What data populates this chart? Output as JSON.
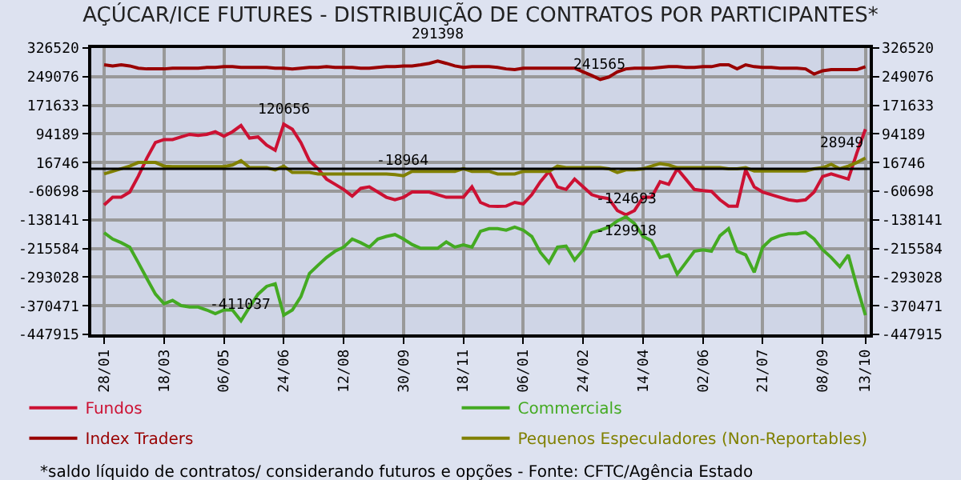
{
  "chart_data": {
    "type": "line",
    "title": "AÇÚCAR/ICE FUTURES - DISTRIBUIÇÃO DE CONTRATOS POR PARTICIPANTES*",
    "annotations": [
      "*saldo líquido de contratos/ considerando futuros e opções - Fonte: CFTC/Agência Estado"
    ],
    "categories": [
      "28/01",
      null,
      null,
      null,
      null,
      null,
      null,
      "18/03",
      null,
      null,
      null,
      null,
      null,
      null,
      "06/05",
      null,
      null,
      null,
      null,
      null,
      null,
      "24/06",
      null,
      null,
      null,
      null,
      null,
      null,
      "12/08",
      null,
      null,
      null,
      null,
      null,
      null,
      "30/09",
      null,
      null,
      null,
      null,
      null,
      null,
      "18/11",
      null,
      null,
      null,
      null,
      null,
      null,
      "06/01",
      null,
      null,
      null,
      null,
      null,
      null,
      "24/02",
      null,
      null,
      null,
      null,
      null,
      null,
      "14/04",
      null,
      null,
      null,
      null,
      null,
      null,
      "02/06",
      null,
      null,
      null,
      null,
      null,
      null,
      "21/07",
      null,
      null,
      null,
      null,
      null,
      null,
      "08/09",
      null,
      null,
      null,
      null,
      "13/10"
    ],
    "series": [
      {
        "name": "Fundos",
        "color": "#cc1133",
        "values": [
          -98000,
          -77000,
          -77000,
          -63000,
          -20000,
          29000,
          71000,
          79000,
          79000,
          86000,
          93000,
          90000,
          93000,
          100000,
          88000,
          100000,
          117000,
          83000,
          86000,
          64000,
          50000,
          120656,
          107000,
          71000,
          22000,
          0,
          -28000,
          -42000,
          -56000,
          -74000,
          -53000,
          -49000,
          -63000,
          -77000,
          -84000,
          -77000,
          -63000,
          -63000,
          -63000,
          -70000,
          -77000,
          -77000,
          -77000,
          -49000,
          -91000,
          -101000,
          -102000,
          -101000,
          -91000,
          -95000,
          -70000,
          -35000,
          -7000,
          -49000,
          -56000,
          -28000,
          -49000,
          -70000,
          -77000,
          -81000,
          -113000,
          -124693,
          -113000,
          -77000,
          -77000,
          -35000,
          -42000,
          0,
          -28000,
          -56000,
          -59000,
          -61000,
          -84000,
          -101000,
          -101000,
          -3000,
          -49000,
          -63000,
          -70000,
          -77000,
          -84000,
          -87000,
          -84000,
          -63000,
          -21000,
          -14000,
          -21000,
          -28000,
          43000,
          107000
        ],
        "value_labels": [
          null,
          null,
          null,
          null,
          null,
          null,
          null,
          null,
          null,
          null,
          null,
          null,
          null,
          null,
          null,
          null,
          null,
          null,
          null,
          null,
          null,
          "120656",
          null,
          null,
          null,
          null,
          null,
          null,
          null,
          null,
          null,
          null,
          null,
          null,
          null,
          null,
          null,
          null,
          null,
          null,
          null,
          null,
          null,
          null,
          null,
          null,
          null,
          null,
          null,
          null,
          null,
          null,
          null,
          null,
          null,
          null,
          null,
          null,
          null,
          null,
          null,
          "-124693",
          null,
          null,
          null,
          null,
          null,
          null,
          null,
          null,
          null,
          null,
          null,
          null,
          null,
          null,
          null,
          null,
          null,
          null,
          null,
          null,
          null,
          null,
          null,
          null,
          null,
          null,
          null,
          null
        ]
      },
      {
        "name": "Commercials",
        "color": "#44aa22",
        "values": [
          -173000,
          -190000,
          -200000,
          -212000,
          -254000,
          -297000,
          -339000,
          -365000,
          -356000,
          -370000,
          -374000,
          -374000,
          -382000,
          -392000,
          -382000,
          -382000,
          -411037,
          -374000,
          -339000,
          -318000,
          -311000,
          -396000,
          -382000,
          -346000,
          -283000,
          -261000,
          -240000,
          -223000,
          -212000,
          -190000,
          -200000,
          -212000,
          -190000,
          -183000,
          -178000,
          -190000,
          -205000,
          -215000,
          -215000,
          -215000,
          -198000,
          -212000,
          -206000,
          -212000,
          -169000,
          -162000,
          -162000,
          -166000,
          -158000,
          -166000,
          -183000,
          -226000,
          -254000,
          -212000,
          -209000,
          -247000,
          -219000,
          -173000,
          -166000,
          -158000,
          -141000,
          -129918,
          -148000,
          -183000,
          -195000,
          -240000,
          -233000,
          -285000,
          -254000,
          -223000,
          -219000,
          -223000,
          -181000,
          -162000,
          -223000,
          -233000,
          -280000,
          -212000,
          -190000,
          -181000,
          -176000,
          -176000,
          -172000,
          -190000,
          -219000,
          -240000,
          -265000,
          -233000,
          -318000,
          -396000
        ],
        "value_labels": [
          null,
          null,
          null,
          null,
          null,
          null,
          null,
          null,
          null,
          null,
          null,
          null,
          null,
          null,
          null,
          null,
          "-411037",
          null,
          null,
          null,
          null,
          null,
          null,
          null,
          null,
          null,
          null,
          null,
          null,
          null,
          null,
          null,
          null,
          null,
          null,
          null,
          null,
          null,
          null,
          null,
          null,
          null,
          null,
          null,
          null,
          null,
          null,
          null,
          null,
          null,
          null,
          null,
          null,
          null,
          null,
          null,
          null,
          null,
          null,
          null,
          null,
          "-129918",
          null,
          null,
          null,
          null,
          null,
          null,
          null,
          null,
          null,
          null,
          null,
          null,
          null,
          null,
          null,
          null,
          null,
          null,
          null,
          null,
          null,
          null,
          null,
          null,
          null,
          null,
          null,
          null
        ]
      },
      {
        "name": "Index Traders",
        "color": "#990000",
        "values": [
          281000,
          278000,
          281000,
          278000,
          272000,
          270000,
          270000,
          270000,
          272000,
          272000,
          272000,
          272000,
          274000,
          274000,
          276000,
          276000,
          274000,
          274000,
          274000,
          274000,
          272000,
          272000,
          270000,
          272000,
          274000,
          274000,
          276000,
          274000,
          274000,
          274000,
          272000,
          272000,
          274000,
          276000,
          276000,
          278000,
          278000,
          281000,
          285000,
          291398,
          285000,
          278000,
          274000,
          276000,
          276000,
          276000,
          274000,
          270000,
          268000,
          272000,
          272000,
          272000,
          272000,
          272000,
          272000,
          272000,
          262000,
          252000,
          241565,
          248000,
          262000,
          270000,
          272000,
          272000,
          272000,
          274000,
          276000,
          276000,
          274000,
          274000,
          276000,
          276000,
          281000,
          281000,
          270000,
          281000,
          276000,
          274000,
          274000,
          272000,
          272000,
          272000,
          270000,
          256000,
          265000,
          268000,
          268000,
          268000,
          268000,
          276000
        ],
        "value_labels": [
          null,
          null,
          null,
          null,
          null,
          null,
          null,
          null,
          null,
          null,
          null,
          null,
          null,
          null,
          null,
          null,
          null,
          null,
          null,
          null,
          null,
          null,
          null,
          null,
          null,
          null,
          null,
          null,
          null,
          null,
          null,
          null,
          null,
          null,
          null,
          null,
          null,
          null,
          null,
          "291398",
          null,
          null,
          null,
          null,
          null,
          null,
          null,
          null,
          null,
          null,
          null,
          null,
          null,
          null,
          null,
          null,
          null,
          null,
          "241565",
          null,
          null,
          null,
          null,
          null,
          null,
          null,
          null,
          null,
          null,
          null,
          null,
          null,
          null,
          null,
          null,
          null,
          null,
          null,
          null,
          null,
          null,
          null,
          null,
          null,
          null,
          null,
          null,
          null,
          null,
          null
        ]
      },
      {
        "name": "Pequenos Especuladores (Non-Reportables)",
        "color": "#808000",
        "values": [
          -14000,
          -7000,
          0,
          7000,
          17000,
          17000,
          17000,
          7000,
          6000,
          6000,
          6000,
          6000,
          6000,
          6000,
          6000,
          10000,
          22000,
          3000,
          3000,
          3000,
          -3000,
          7000,
          -10000,
          -10000,
          -10000,
          -14000,
          -14000,
          -14000,
          -14000,
          -14000,
          -14000,
          -14000,
          -14000,
          -14000,
          -16000,
          -18964,
          -7000,
          -7000,
          -7000,
          -7000,
          -7000,
          -7000,
          0,
          -7000,
          -7000,
          -7000,
          -14000,
          -14000,
          -14000,
          -7000,
          -7000,
          -7000,
          -7000,
          7000,
          3000,
          3000,
          3000,
          3000,
          3000,
          0,
          -10000,
          -3000,
          -3000,
          0,
          7000,
          14000,
          10000,
          3000,
          3000,
          3000,
          3000,
          3000,
          3000,
          0,
          0,
          3000,
          -6000,
          -6000,
          -6000,
          -6000,
          -6000,
          -6000,
          -6000,
          0,
          3000,
          12000,
          0,
          7000,
          17000,
          28949
        ],
        "value_labels": [
          null,
          null,
          null,
          null,
          null,
          null,
          null,
          null,
          null,
          null,
          null,
          null,
          null,
          null,
          null,
          null,
          null,
          null,
          null,
          null,
          null,
          null,
          null,
          null,
          null,
          null,
          null,
          null,
          null,
          null,
          null,
          null,
          null,
          null,
          null,
          "-18964",
          null,
          null,
          null,
          null,
          null,
          null,
          null,
          null,
          null,
          null,
          null,
          null,
          null,
          null,
          null,
          null,
          null,
          null,
          null,
          null,
          null,
          null,
          null,
          null,
          null,
          null,
          null,
          null,
          null,
          null,
          null,
          null,
          null,
          null,
          null,
          null,
          null,
          null,
          null,
          null,
          null,
          null,
          null,
          null,
          null,
          null,
          null,
          null,
          null,
          null,
          null,
          null,
          null,
          "28949"
        ]
      }
    ],
    "ylim": [
      -447915,
      326520
    ],
    "yticks": [
      -447915,
      -370471,
      -293028,
      -215584,
      -138141,
      -60698,
      16746,
      94189,
      171633,
      249076,
      326520
    ],
    "y2lim": [
      -447915,
      326520
    ],
    "y2ticks": [
      -447915,
      -370471,
      -293028,
      -215584,
      -138141,
      -60698,
      16746,
      94189,
      171633,
      249076,
      326520
    ],
    "ref_lines": [
      {
        "axis": "y",
        "value": 0,
        "color": "#000000"
      }
    ],
    "grid": true,
    "legend": "bottom",
    "marker": "none",
    "line_style": "solid"
  }
}
